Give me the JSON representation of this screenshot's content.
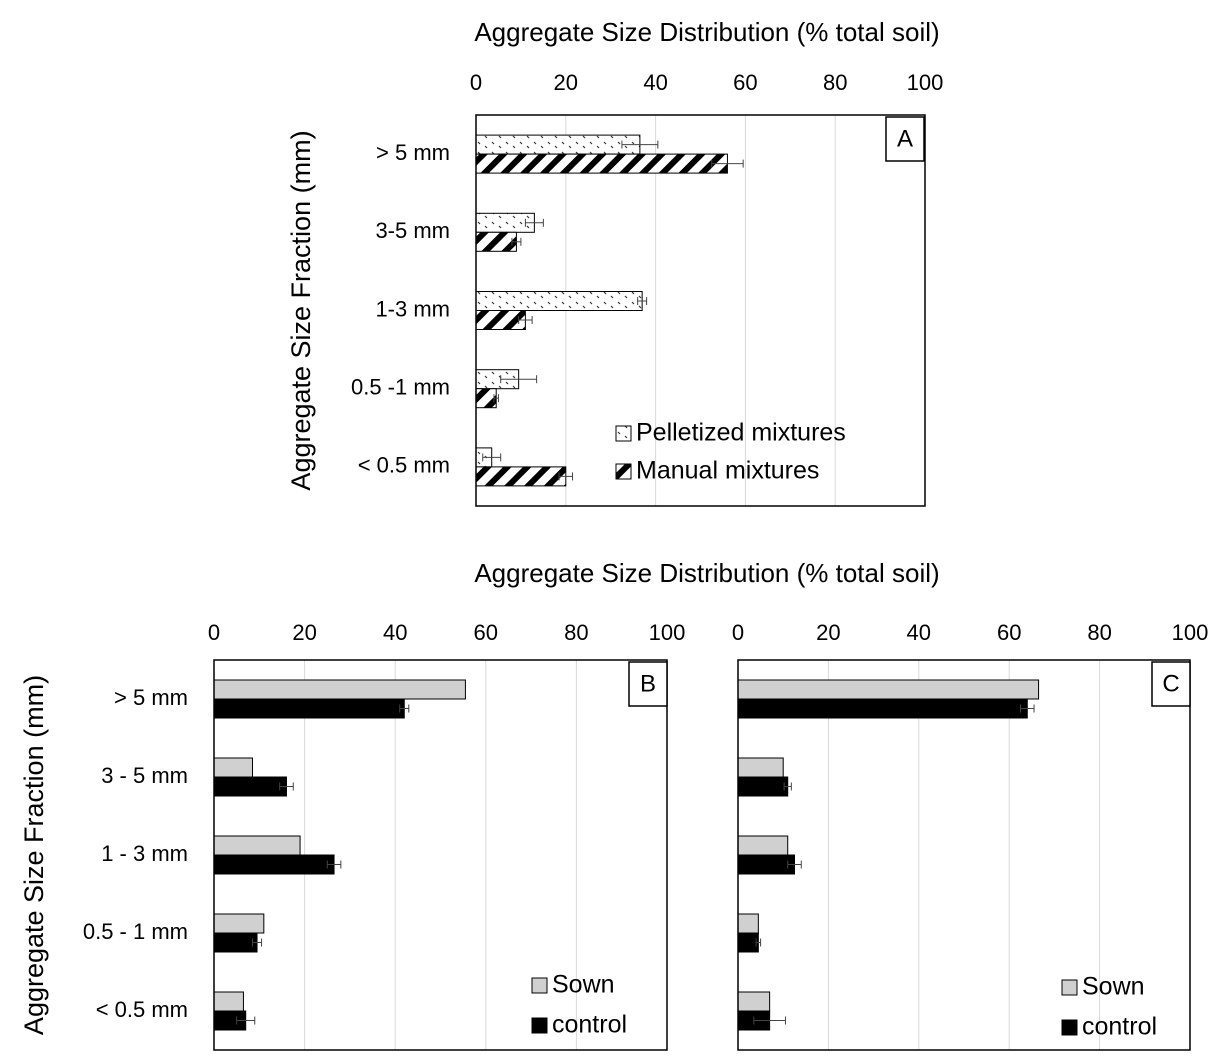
{
  "colors": {
    "frame": "#000000",
    "grid": "#d9d9d9",
    "sown": "#d0d0d0",
    "control": "#000000",
    "pellet_bg": "#ffffff",
    "hatch": "#000000"
  },
  "chart_data": [
    {
      "id": "A",
      "type": "bar",
      "orientation": "horizontal",
      "panel_label": "A",
      "title": "Aggregate Size Distribution (% total soil)",
      "ylabel": "Aggregate Size Fraction (mm)",
      "xlim": [
        0,
        100
      ],
      "xticks": [
        "0",
        "20",
        "40",
        "60",
        "80",
        "100"
      ],
      "grid": true,
      "legend_position": "bottom-right",
      "categories": [
        "> 5 mm",
        "3-5 mm",
        "1-3 mm",
        "0.5 -1 mm",
        "< 0.5 mm"
      ],
      "series": [
        {
          "name": "Pelletized mixtures",
          "pattern": "dots",
          "values": [
            36.5,
            13,
            37,
            9.5,
            3.5
          ],
          "errors": [
            4,
            2,
            1,
            4,
            2
          ]
        },
        {
          "name": "Manual mixtures",
          "pattern": "hatch",
          "values": [
            56,
            9,
            11,
            4.5,
            20
          ],
          "errors": [
            3.5,
            1,
            1.5,
            0.5,
            1.5
          ]
        }
      ]
    },
    {
      "id": "B",
      "type": "bar",
      "orientation": "horizontal",
      "panel_label": "B",
      "title": "Aggregate Size Distribution (% total soil)",
      "ylabel": "Aggregate Size Fraction (mm)",
      "xlim": [
        0,
        100
      ],
      "xticks": [
        "0",
        "20",
        "40",
        "60",
        "80",
        "100"
      ],
      "grid": true,
      "legend_position": "bottom-right",
      "categories": [
        "> 5 mm",
        "3 - 5 mm",
        "1 - 3 mm",
        "0.5 - 1 mm",
        "< 0.5 mm"
      ],
      "series": [
        {
          "name": "Sown",
          "pattern": "solid-gray",
          "values": [
            55.5,
            8.5,
            19,
            11,
            6.5
          ],
          "errors": [
            0,
            0,
            0,
            0,
            0
          ]
        },
        {
          "name": "control",
          "pattern": "solid-black",
          "values": [
            42,
            16,
            26.5,
            9.5,
            7
          ],
          "errors": [
            1,
            1.5,
            1.5,
            1,
            2
          ]
        }
      ]
    },
    {
      "id": "C",
      "type": "bar",
      "orientation": "horizontal",
      "panel_label": "C",
      "xlim": [
        0,
        100
      ],
      "xticks": [
        "0",
        "20",
        "40",
        "60",
        "80",
        "100"
      ],
      "grid": true,
      "legend_position": "bottom-right",
      "categories": [
        "> 5 mm",
        "3 - 5 mm",
        "1 - 3 mm",
        "0.5 - 1 mm",
        "< 0.5 mm"
      ],
      "series": [
        {
          "name": "Sown",
          "pattern": "solid-gray",
          "values": [
            66.5,
            10,
            11,
            4.5,
            7
          ],
          "errors": [
            0,
            0,
            0,
            0,
            0
          ]
        },
        {
          "name": "control",
          "pattern": "solid-black",
          "values": [
            64,
            11,
            12.5,
            4.5,
            7
          ],
          "errors": [
            1.5,
            0.8,
            1.5,
            0.5,
            3.5
          ]
        }
      ]
    }
  ]
}
